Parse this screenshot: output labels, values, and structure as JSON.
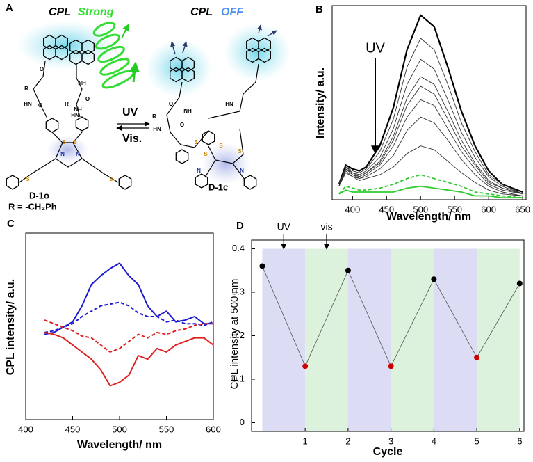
{
  "diagram": {
    "panel": "A",
    "labels": {
      "left_cpl": "CPL",
      "left_state": "Strong",
      "right_cpl": "CPL",
      "right_state": "OFF",
      "forward": "UV",
      "backward": "Vis.",
      "left_name": "D-1o",
      "substituent": "R = -CH₂Ph",
      "right_name": "D-1c"
    },
    "atoms": [
      "O",
      "NH",
      "R",
      "O",
      "NH",
      "R",
      "O",
      "HN",
      "HN",
      "S",
      "S",
      "N",
      "N",
      "S",
      "S",
      "O",
      "NH",
      "R",
      "O",
      "HN",
      "HN",
      "S",
      "N",
      "S",
      "N",
      "S",
      "S"
    ]
  },
  "chart_data": [
    {
      "type": "line",
      "panel": "B",
      "xlabel": "Wavelength/ nm",
      "ylabel": "Intensity/ a.u.",
      "annotation": "UV",
      "x": [
        380,
        390,
        400,
        410,
        420,
        440,
        460,
        480,
        500,
        520,
        540,
        560,
        580,
        600,
        620,
        650
      ],
      "xlim": [
        370,
        655
      ],
      "xticks": [
        400,
        450,
        500,
        550,
        600,
        650
      ],
      "ylim": [
        -0.01,
        1
      ],
      "series": [
        {
          "color": "#000000",
          "width": 2.2,
          "values": [
            0.07,
            0.17,
            0.15,
            0.14,
            0.16,
            0.27,
            0.47,
            0.77,
            0.95,
            0.89,
            0.68,
            0.45,
            0.27,
            0.14,
            0.07,
            0.03
          ]
        },
        {
          "color": "#333333",
          "width": 0.9,
          "values": [
            0.07,
            0.16,
            0.14,
            0.13,
            0.15,
            0.24,
            0.41,
            0.68,
            0.83,
            0.77,
            0.59,
            0.39,
            0.24,
            0.12,
            0.07,
            0.02
          ]
        },
        {
          "color": "#333333",
          "width": 0.9,
          "values": [
            0.06,
            0.16,
            0.13,
            0.12,
            0.14,
            0.21,
            0.36,
            0.59,
            0.72,
            0.67,
            0.51,
            0.34,
            0.21,
            0.11,
            0.06,
            0.02
          ]
        },
        {
          "color": "#333333",
          "width": 0.9,
          "values": [
            0.06,
            0.15,
            0.13,
            0.11,
            0.13,
            0.19,
            0.32,
            0.52,
            0.63,
            0.59,
            0.45,
            0.3,
            0.18,
            0.09,
            0.05,
            0.02
          ]
        },
        {
          "color": "#333333",
          "width": 0.9,
          "values": [
            0.06,
            0.15,
            0.12,
            0.11,
            0.13,
            0.18,
            0.3,
            0.48,
            0.58,
            0.54,
            0.41,
            0.27,
            0.17,
            0.08,
            0.05,
            0.02
          ]
        },
        {
          "color": "#333333",
          "width": 0.9,
          "values": [
            0.06,
            0.15,
            0.12,
            0.1,
            0.12,
            0.17,
            0.27,
            0.42,
            0.51,
            0.48,
            0.36,
            0.24,
            0.15,
            0.07,
            0.04,
            0.02
          ]
        },
        {
          "color": "#333333",
          "width": 0.9,
          "values": [
            0.06,
            0.14,
            0.11,
            0.1,
            0.11,
            0.15,
            0.22,
            0.35,
            0.42,
            0.39,
            0.3,
            0.2,
            0.12,
            0.06,
            0.03,
            0.01
          ]
        },
        {
          "color": "#333333",
          "width": 0.9,
          "values": [
            0.06,
            0.13,
            0.11,
            0.09,
            0.1,
            0.12,
            0.16,
            0.23,
            0.27,
            0.25,
            0.19,
            0.13,
            0.08,
            0.04,
            0.02,
            0.01
          ]
        },
        {
          "color": "#2ecc2e",
          "width": 1.8,
          "linestyle": "dashed",
          "values": [
            0.02,
            0.06,
            0.05,
            0.04,
            0.04,
            0.05,
            0.07,
            0.1,
            0.12,
            0.1,
            0.08,
            0.06,
            0.03,
            0.02,
            0.01,
            0
          ]
        },
        {
          "color": "#2ecc2e",
          "width": 1.8,
          "values": [
            0.02,
            0.04,
            0.03,
            0.03,
            0.03,
            0.03,
            0.03,
            0.05,
            0.06,
            0.05,
            0.04,
            0.03,
            0.01,
            0.01,
            0,
            0
          ]
        }
      ]
    },
    {
      "type": "line",
      "panel": "C",
      "xlabel": "Wavelength/ nm",
      "ylabel": "CPL intensity/ a.u.",
      "x": [
        420,
        430,
        440,
        450,
        460,
        470,
        480,
        490,
        500,
        510,
        520,
        530,
        540,
        550,
        560,
        570,
        580,
        590,
        600
      ],
      "xlim": [
        400,
        600
      ],
      "xticks": [
        400,
        450,
        500,
        550,
        600
      ],
      "ylim": [
        -0.01,
        1.04
      ],
      "series": [
        {
          "color": "#1a1ad0",
          "width": 2,
          "values": [
            0.47,
            0.48,
            0.51,
            0.54,
            0.63,
            0.75,
            0.8,
            0.84,
            0.87,
            0.8,
            0.75,
            0.63,
            0.57,
            0.6,
            0.54,
            0.55,
            0.57,
            0.53,
            0.53
          ]
        },
        {
          "color": "#1a1ad0",
          "width": 2,
          "linestyle": "dashed",
          "values": [
            0.48,
            0.49,
            0.51,
            0.53,
            0.57,
            0.6,
            0.63,
            0.64,
            0.65,
            0.63,
            0.59,
            0.57,
            0.57,
            0.54,
            0.55,
            0.53,
            0.53,
            0.52,
            0.54
          ]
        },
        {
          "color": "#e02020",
          "width": 2,
          "values": [
            0.48,
            0.47,
            0.45,
            0.41,
            0.37,
            0.33,
            0.27,
            0.18,
            0.2,
            0.24,
            0.35,
            0.33,
            0.39,
            0.37,
            0.41,
            0.43,
            0.45,
            0.45,
            0.41
          ]
        },
        {
          "color": "#e02020",
          "width": 2,
          "linestyle": "dashed",
          "values": [
            0.55,
            0.53,
            0.51,
            0.49,
            0.46,
            0.45,
            0.41,
            0.37,
            0.39,
            0.43,
            0.47,
            0.45,
            0.48,
            0.47,
            0.49,
            0.5,
            0.52,
            0.53,
            0.53
          ]
        }
      ]
    },
    {
      "type": "line",
      "panel": "D",
      "xlabel": "Cycle",
      "ylabel": "CPL intensity at 500 nm",
      "x": [
        0,
        1,
        2,
        3,
        4,
        5,
        6
      ],
      "xlim": [
        -0.25,
        6.1
      ],
      "xticks": [
        1,
        2,
        3,
        4,
        5,
        6
      ],
      "ylim": [
        -0.02,
        0.42
      ],
      "yticks": [
        0,
        0.1,
        0.2,
        0.3,
        0.4
      ],
      "series": [
        {
          "color": "#555555",
          "width": 0.8,
          "markers": true,
          "point_colors": [
            "#000000",
            "#cc0000",
            "#000000",
            "#cc0000",
            "#000000",
            "#cc0000",
            "#000000"
          ],
          "values": [
            0.36,
            0.13,
            0.35,
            0.13,
            0.33,
            0.15,
            0.32
          ]
        }
      ],
      "bands": [
        {
          "from": 0,
          "to": 1,
          "color": "#dcdcf4"
        },
        {
          "from": 1,
          "to": 2,
          "color": "#dcf2dc"
        },
        {
          "from": 2,
          "to": 3,
          "color": "#dcdcf4"
        },
        {
          "from": 3,
          "to": 4,
          "color": "#dcf2dc"
        },
        {
          "from": 4,
          "to": 5,
          "color": "#dcdcf4"
        },
        {
          "from": 5,
          "to": 6,
          "color": "#dcf2dc"
        }
      ],
      "annotations": [
        {
          "text": "UV",
          "x": 0.5
        },
        {
          "text": "vis",
          "x": 1.5
        }
      ]
    }
  ]
}
